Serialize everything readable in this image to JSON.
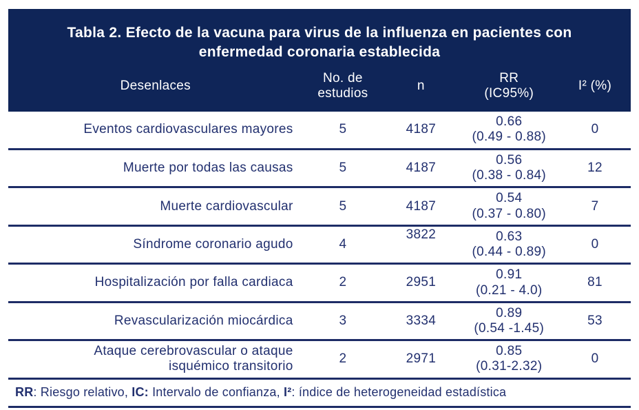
{
  "colors": {
    "header_bg": "#0F2558",
    "ink": "#22306F",
    "line": "#1D2C66",
    "header_text": "#FFFFFF",
    "page_bg": "#FFFFFF"
  },
  "table": {
    "title": "Tabla 2. Efecto de la vacuna para virus de la influenza en pacientes con enfermedad coronaria establecida",
    "columns": [
      {
        "label": "Desenlaces"
      },
      {
        "label": "No. de\nestudios"
      },
      {
        "label": "n"
      },
      {
        "label": "RR\n(IC95%)"
      },
      {
        "label": "I² (%)"
      }
    ],
    "rows": [
      {
        "outcome": "Eventos cardiovasculares mayores",
        "studies": "5",
        "n": "4187",
        "rr": "0.66",
        "ci": "(0.49 - 0.88)",
        "i2": "0"
      },
      {
        "outcome": "Muerte por todas las causas",
        "studies": "5",
        "n": "4187",
        "rr": "0.56",
        "ci": "(0.38 - 0.84)",
        "i2": "12"
      },
      {
        "outcome": "Muerte cardiovascular",
        "studies": "5",
        "n": "4187",
        "rr": "0.54",
        "ci": "(0.37 - 0.80)",
        "i2": "7"
      },
      {
        "outcome": "Síndrome coronario agudo",
        "studies": "4",
        "n": "3822",
        "rr": "0.63",
        "ci": "(0.44 - 0.89)",
        "i2": "0"
      },
      {
        "outcome": "Hospitalización por falla cardiaca",
        "studies": "2",
        "n": "2951",
        "rr": "0.91",
        "ci": "(0.21 - 4.0)",
        "i2": "81"
      },
      {
        "outcome": "Revascularización miocárdica",
        "studies": "3",
        "n": "3334",
        "rr": "0.89",
        "ci": "(0.54 -1.45)",
        "i2": "53"
      },
      {
        "outcome": "Ataque cerebrovascular o ataque\nisquémico transitorio",
        "studies": "2",
        "n": "2971",
        "rr": "0.85",
        "ci": "(0.31-2.32)",
        "i2": "0"
      }
    ],
    "footnote_segments": [
      {
        "text": "RR",
        "bold": true
      },
      {
        "text": ": Riesgo relativo, ",
        "bold": false
      },
      {
        "text": "IC:",
        "bold": true
      },
      {
        "text": " Intervalo de confianza, ",
        "bold": false
      },
      {
        "text": "I²",
        "bold": true
      },
      {
        "text": ": índice de heterogeneidad estadística",
        "bold": false
      }
    ]
  }
}
